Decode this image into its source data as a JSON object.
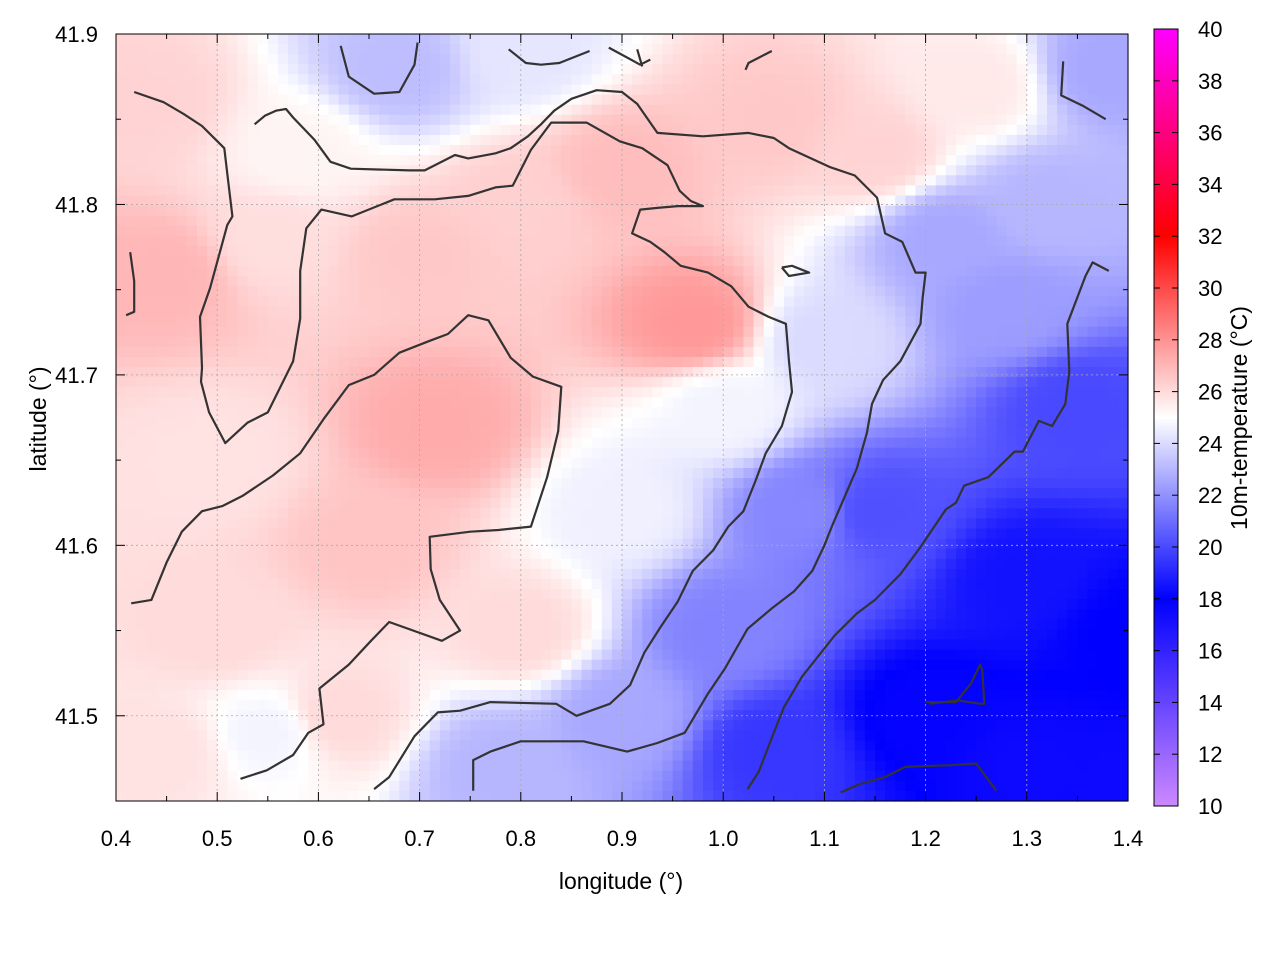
{
  "chart_data": {
    "type": "heatmap",
    "title": "",
    "xlabel": "longitude (°)",
    "ylabel": "latitude (°)",
    "xlim": [
      0.4,
      1.4
    ],
    "ylim": [
      41.45,
      41.9
    ],
    "x_ticks": [
      "0.4",
      "0.5",
      "0.6",
      "0.7",
      "0.8",
      "0.9",
      "1.0",
      "1.1",
      "1.2",
      "1.3",
      "1.4"
    ],
    "x_tick_values": [
      0.4,
      0.5,
      0.6,
      0.7,
      0.8,
      0.9,
      1.0,
      1.1,
      1.2,
      1.3,
      1.4
    ],
    "y_ticks": [
      "41.5",
      "41.6",
      "41.7",
      "41.8",
      "41.9"
    ],
    "y_tick_values": [
      41.5,
      41.6,
      41.7,
      41.8,
      41.9
    ],
    "grid": true,
    "colorbar": {
      "label": "10m-temperature (°C)",
      "range": [
        10,
        40
      ],
      "ticks": [
        "10",
        "12",
        "14",
        "16",
        "18",
        "20",
        "22",
        "24",
        "26",
        "28",
        "30",
        "32",
        "34",
        "36",
        "38",
        "40"
      ],
      "tick_values": [
        10,
        12,
        14,
        16,
        18,
        20,
        22,
        24,
        26,
        28,
        30,
        32,
        34,
        36,
        38,
        40
      ],
      "stops": [
        {
          "value": 10,
          "color": "#cc88ff"
        },
        {
          "value": 18,
          "color": "#0000ff"
        },
        {
          "value": 25,
          "color": "#ffffff"
        },
        {
          "value": 32,
          "color": "#ff0000"
        },
        {
          "value": 40,
          "color": "#ff00ff"
        }
      ]
    },
    "temperature_samples": [
      {
        "lon": 0.45,
        "lat": 41.76,
        "t": 27.0
      },
      {
        "lon": 0.43,
        "lat": 41.86,
        "t": 26.2
      },
      {
        "lon": 0.55,
        "lat": 41.78,
        "t": 25.9
      },
      {
        "lon": 0.58,
        "lat": 41.83,
        "t": 25.3
      },
      {
        "lon": 0.68,
        "lat": 41.88,
        "t": 23.2
      },
      {
        "lon": 0.8,
        "lat": 41.89,
        "t": 24.3
      },
      {
        "lon": 0.7,
        "lat": 41.77,
        "t": 26.5
      },
      {
        "lon": 0.8,
        "lat": 41.8,
        "t": 26.3
      },
      {
        "lon": 0.97,
        "lat": 41.73,
        "t": 27.8
      },
      {
        "lon": 0.9,
        "lat": 41.82,
        "t": 26.8
      },
      {
        "lon": 1.05,
        "lat": 41.85,
        "t": 26.5
      },
      {
        "lon": 1.15,
        "lat": 41.83,
        "t": 26.2
      },
      {
        "lon": 1.25,
        "lat": 41.87,
        "t": 25.6
      },
      {
        "lon": 1.32,
        "lat": 41.8,
        "t": 23.0
      },
      {
        "lon": 1.38,
        "lat": 41.88,
        "t": 22.6
      },
      {
        "lon": 1.28,
        "lat": 41.74,
        "t": 22.3
      },
      {
        "lon": 1.1,
        "lat": 41.72,
        "t": 24.0
      },
      {
        "lon": 1.0,
        "lat": 41.68,
        "t": 24.7
      },
      {
        "lon": 0.9,
        "lat": 41.62,
        "t": 24.6
      },
      {
        "lon": 0.72,
        "lat": 41.67,
        "t": 27.3
      },
      {
        "lon": 0.65,
        "lat": 41.6,
        "t": 26.6
      },
      {
        "lon": 0.5,
        "lat": 41.65,
        "t": 25.8
      },
      {
        "lon": 0.5,
        "lat": 41.55,
        "t": 26.0
      },
      {
        "lon": 0.62,
        "lat": 41.5,
        "t": 26.0
      },
      {
        "lon": 0.45,
        "lat": 41.48,
        "t": 25.8
      },
      {
        "lon": 0.55,
        "lat": 41.49,
        "t": 24.7
      },
      {
        "lon": 0.8,
        "lat": 41.55,
        "t": 26.0
      },
      {
        "lon": 0.78,
        "lat": 41.47,
        "t": 23.0
      },
      {
        "lon": 0.9,
        "lat": 41.5,
        "t": 22.6
      },
      {
        "lon": 1.0,
        "lat": 41.55,
        "t": 21.6
      },
      {
        "lon": 1.05,
        "lat": 41.48,
        "t": 19.5
      },
      {
        "lon": 1.2,
        "lat": 41.5,
        "t": 17.8
      },
      {
        "lon": 1.3,
        "lat": 41.47,
        "t": 17.5
      },
      {
        "lon": 1.3,
        "lat": 41.58,
        "t": 18.5
      },
      {
        "lon": 1.15,
        "lat": 41.62,
        "t": 20.2
      },
      {
        "lon": 1.35,
        "lat": 41.68,
        "t": 20.0
      },
      {
        "lon": 1.22,
        "lat": 41.78,
        "t": 22.6
      },
      {
        "lon": 1.08,
        "lat": 41.62,
        "t": 21.7
      },
      {
        "lon": 1.4,
        "lat": 41.55,
        "t": 18.0
      },
      {
        "lon": 1.4,
        "lat": 41.46,
        "t": 17.5
      }
    ],
    "contours": [
      [
        [
          0.415,
          41.566
        ],
        [
          0.435,
          41.568
        ],
        [
          0.45,
          41.59
        ],
        [
          0.465,
          41.608
        ],
        [
          0.485,
          41.62
        ],
        [
          0.505,
          41.623
        ],
        [
          0.525,
          41.629
        ],
        [
          0.555,
          41.641
        ],
        [
          0.582,
          41.654
        ],
        [
          0.605,
          41.674
        ],
        [
          0.63,
          41.694
        ],
        [
          0.655,
          41.7
        ],
        [
          0.68,
          41.713
        ],
        [
          0.71,
          41.72
        ],
        [
          0.728,
          41.724
        ],
        [
          0.748,
          41.735
        ],
        [
          0.768,
          41.732
        ],
        [
          0.79,
          41.71
        ],
        [
          0.812,
          41.699
        ],
        [
          0.84,
          41.693
        ],
        [
          0.837,
          41.667
        ],
        [
          0.826,
          41.64
        ],
        [
          0.81,
          41.611
        ],
        [
          0.778,
          41.609
        ],
        [
          0.75,
          41.608
        ],
        [
          0.71,
          41.605
        ],
        [
          0.711,
          41.586
        ],
        [
          0.72,
          41.568
        ],
        [
          0.74,
          41.55
        ],
        [
          0.722,
          41.544
        ],
        [
          0.67,
          41.555
        ],
        [
          0.652,
          41.544
        ],
        [
          0.63,
          41.53
        ],
        [
          0.601,
          41.516
        ],
        [
          0.605,
          41.495
        ],
        [
          0.59,
          41.49
        ],
        [
          0.575,
          41.477
        ],
        [
          0.549,
          41.468
        ],
        [
          0.523,
          41.463
        ]
      ],
      [
        [
          0.41,
          41.735
        ],
        [
          0.418,
          41.737
        ],
        [
          0.418,
          41.755
        ],
        [
          0.414,
          41.772
        ]
      ],
      [
        [
          0.418,
          41.866
        ],
        [
          0.447,
          41.86
        ],
        [
          0.467,
          41.853
        ],
        [
          0.485,
          41.846
        ],
        [
          0.507,
          41.833
        ],
        [
          0.51,
          41.818
        ],
        [
          0.515,
          41.793
        ],
        [
          0.51,
          41.788
        ],
        [
          0.493,
          41.751
        ],
        [
          0.483,
          41.734
        ],
        [
          0.485,
          41.704
        ],
        [
          0.484,
          41.696
        ],
        [
          0.492,
          41.678
        ],
        [
          0.508,
          41.66
        ],
        [
          0.53,
          41.672
        ],
        [
          0.55,
          41.678
        ],
        [
          0.575,
          41.708
        ],
        [
          0.582,
          41.733
        ],
        [
          0.582,
          41.761
        ],
        [
          0.588,
          41.786
        ],
        [
          0.603,
          41.797
        ],
        [
          0.633,
          41.793
        ],
        [
          0.675,
          41.803
        ],
        [
          0.715,
          41.803
        ],
        [
          0.748,
          41.805
        ],
        [
          0.775,
          41.81
        ],
        [
          0.792,
          41.811
        ],
        [
          0.81,
          41.832
        ],
        [
          0.83,
          41.848
        ],
        [
          0.865,
          41.848
        ],
        [
          0.898,
          41.837
        ],
        [
          0.92,
          41.833
        ],
        [
          0.945,
          41.823
        ],
        [
          0.957,
          41.808
        ],
        [
          0.968,
          41.802
        ],
        [
          0.98,
          41.799
        ],
        [
          0.955,
          41.799
        ],
        [
          0.935,
          41.798
        ],
        [
          0.918,
          41.797
        ],
        [
          0.91,
          41.783
        ],
        [
          0.928,
          41.778
        ],
        [
          0.942,
          41.772
        ],
        [
          0.958,
          41.764
        ],
        [
          0.985,
          41.76
        ],
        [
          1.008,
          41.752
        ],
        [
          1.025,
          41.74
        ],
        [
          1.045,
          41.734
        ],
        [
          1.062,
          41.73
        ],
        [
          1.065,
          41.708
        ],
        [
          1.068,
          41.69
        ],
        [
          1.058,
          41.67
        ],
        [
          1.042,
          41.654
        ],
        [
          1.032,
          41.638
        ],
        [
          1.02,
          41.62
        ],
        [
          1.005,
          41.611
        ],
        [
          0.99,
          41.597
        ],
        [
          0.97,
          41.585
        ],
        [
          0.955,
          41.567
        ],
        [
          0.938,
          41.552
        ],
        [
          0.922,
          41.537
        ],
        [
          0.908,
          41.518
        ],
        [
          0.888,
          41.507
        ],
        [
          0.855,
          41.5
        ],
        [
          0.835,
          41.507
        ],
        [
          0.77,
          41.508
        ],
        [
          0.74,
          41.503
        ],
        [
          0.718,
          41.502
        ],
        [
          0.695,
          41.488
        ],
        [
          0.67,
          41.464
        ],
        [
          0.655,
          41.457
        ]
      ],
      [
        [
          0.753,
          41.456
        ],
        [
          0.753,
          41.474
        ],
        [
          0.77,
          41.479
        ],
        [
          0.8,
          41.485
        ],
        [
          0.862,
          41.485
        ],
        [
          0.905,
          41.479
        ],
        [
          0.935,
          41.484
        ],
        [
          0.962,
          41.49
        ],
        [
          0.985,
          41.513
        ],
        [
          1.002,
          41.528
        ],
        [
          1.024,
          41.551
        ],
        [
          1.048,
          41.563
        ],
        [
          1.07,
          41.573
        ],
        [
          1.088,
          41.585
        ],
        [
          1.1,
          41.6
        ],
        [
          1.108,
          41.612
        ],
        [
          1.132,
          41.645
        ],
        [
          1.142,
          41.666
        ],
        [
          1.147,
          41.683
        ],
        [
          1.158,
          41.697
        ],
        [
          1.175,
          41.708
        ],
        [
          1.195,
          41.73
        ],
        [
          1.197,
          41.745
        ],
        [
          1.2,
          41.76
        ],
        [
          1.19,
          41.76
        ],
        [
          1.177,
          41.778
        ],
        [
          1.16,
          41.783
        ],
        [
          1.152,
          41.804
        ],
        [
          1.13,
          41.817
        ],
        [
          1.105,
          41.822
        ],
        [
          1.065,
          41.833
        ],
        [
          1.05,
          41.839
        ],
        [
          1.025,
          41.842
        ],
        [
          0.98,
          41.84
        ],
        [
          0.935,
          41.842
        ],
        [
          0.915,
          41.859
        ],
        [
          0.9,
          41.866
        ],
        [
          0.875,
          41.867
        ],
        [
          0.85,
          41.862
        ],
        [
          0.833,
          41.855
        ],
        [
          0.82,
          41.847
        ],
        [
          0.807,
          41.84
        ],
        [
          0.79,
          41.833
        ],
        [
          0.775,
          41.83
        ],
        [
          0.748,
          41.827
        ],
        [
          0.735,
          41.829
        ],
        [
          0.705,
          41.82
        ],
        [
          0.69,
          41.82
        ],
        [
          0.632,
          41.821
        ],
        [
          0.612,
          41.825
        ],
        [
          0.596,
          41.838
        ],
        [
          0.575,
          41.851
        ],
        [
          0.568,
          41.856
        ],
        [
          0.558,
          41.855
        ],
        [
          0.547,
          41.852
        ],
        [
          0.537,
          41.847
        ]
      ],
      [
        [
          0.622,
          41.893
        ],
        [
          0.63,
          41.875
        ],
        [
          0.655,
          41.865
        ],
        [
          0.68,
          41.866
        ],
        [
          0.695,
          41.882
        ],
        [
          0.698,
          41.895
        ]
      ],
      [
        [
          0.788,
          41.891
        ],
        [
          0.805,
          41.883
        ],
        [
          0.82,
          41.882
        ],
        [
          0.838,
          41.883
        ],
        [
          0.868,
          41.89
        ]
      ],
      [
        [
          0.887,
          41.892
        ],
        [
          0.918,
          41.882
        ],
        [
          0.928,
          41.885
        ]
      ],
      [
        [
          0.915,
          41.891
        ],
        [
          0.92,
          41.881
        ]
      ],
      [
        [
          1.022,
          41.879
        ],
        [
          1.025,
          41.883
        ],
        [
          1.048,
          41.89
        ]
      ],
      [
        [
          1.058,
          41.763
        ],
        [
          1.068,
          41.764
        ],
        [
          1.085,
          41.76
        ],
        [
          1.065,
          41.758
        ],
        [
          1.058,
          41.763
        ]
      ],
      [
        [
          1.336,
          41.884
        ],
        [
          1.334,
          41.864
        ],
        [
          1.355,
          41.858
        ],
        [
          1.378,
          41.85
        ]
      ],
      [
        [
          1.024,
          41.457
        ],
        [
          1.035,
          41.467
        ],
        [
          1.048,
          41.487
        ],
        [
          1.06,
          41.505
        ],
        [
          1.078,
          41.523
        ],
        [
          1.11,
          41.547
        ],
        [
          1.132,
          41.56
        ],
        [
          1.15,
          41.568
        ],
        [
          1.175,
          41.583
        ],
        [
          1.195,
          41.599
        ],
        [
          1.22,
          41.621
        ],
        [
          1.23,
          41.625
        ],
        [
          1.238,
          41.635
        ],
        [
          1.262,
          41.64
        ],
        [
          1.288,
          41.655
        ],
        [
          1.296,
          41.655
        ],
        [
          1.312,
          41.673
        ],
        [
          1.325,
          41.67
        ],
        [
          1.338,
          41.683
        ],
        [
          1.342,
          41.702
        ],
        [
          1.34,
          41.73
        ],
        [
          1.358,
          41.758
        ],
        [
          1.365,
          41.766
        ],
        [
          1.381,
          41.761
        ]
      ],
      [
        [
          1.116,
          41.455
        ],
        [
          1.135,
          41.46
        ],
        [
          1.16,
          41.464
        ],
        [
          1.18,
          41.47
        ],
        [
          1.224,
          41.471
        ],
        [
          1.25,
          41.472
        ],
        [
          1.27,
          41.456
        ]
      ],
      [
        [
          1.204,
          41.507
        ],
        [
          1.232,
          41.509
        ],
        [
          1.254,
          41.507
        ],
        [
          1.258,
          41.507
        ],
        [
          1.256,
          41.527
        ],
        [
          1.254,
          41.53
        ],
        [
          1.245,
          41.519
        ],
        [
          1.23,
          41.508
        ],
        [
          1.2,
          41.508
        ]
      ]
    ]
  }
}
